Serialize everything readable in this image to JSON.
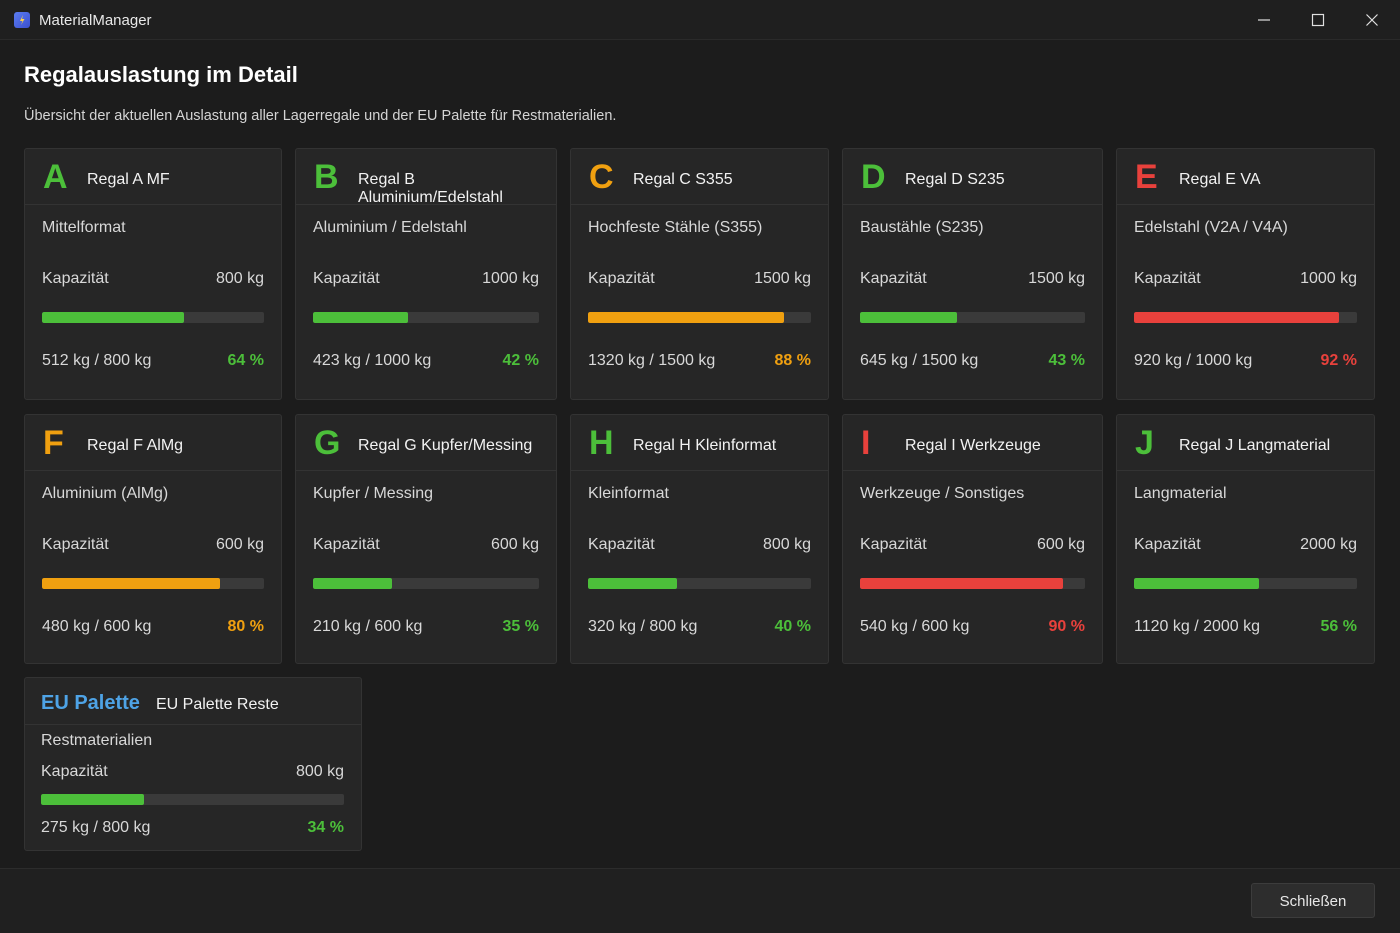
{
  "window": {
    "title": "MaterialManager"
  },
  "header": {
    "title": "Regalauslastung im Detail",
    "subtitle": "Übersicht der aktuellen Auslastung aller Lagerregale und der EU Palette für Restmaterialien."
  },
  "labels": {
    "capacity": "Kapazität"
  },
  "colors": {
    "green": "#4cbf3a",
    "orange": "#f0a010",
    "red": "#e8413c",
    "blue": "#4ea3e6"
  },
  "shelves": [
    {
      "letter": "A",
      "title": "Regal A MF",
      "desc": "Mittelformat",
      "capacity": "800 kg",
      "usage": "512 kg / 800 kg",
      "pct": "64 %",
      "fill": 0.64,
      "color": "green"
    },
    {
      "letter": "B",
      "title": "Regal B Aluminium/Edelstahl",
      "desc": "Aluminium / Edelstahl",
      "capacity": "1000 kg",
      "usage": "423 kg / 1000 kg",
      "pct": "42 %",
      "fill": 0.42,
      "color": "green"
    },
    {
      "letter": "C",
      "title": "Regal C S355",
      "desc": "Hochfeste Stähle (S355)",
      "capacity": "1500 kg",
      "usage": "1320 kg / 1500 kg",
      "pct": "88 %",
      "fill": 0.88,
      "color": "orange"
    },
    {
      "letter": "D",
      "title": "Regal D S235",
      "desc": "Baustähle (S235)",
      "capacity": "1500 kg",
      "usage": "645 kg / 1500 kg",
      "pct": "43 %",
      "fill": 0.43,
      "color": "green"
    },
    {
      "letter": "E",
      "title": "Regal E VA",
      "desc": "Edelstahl (V2A / V4A)",
      "capacity": "1000 kg",
      "usage": "920 kg / 1000 kg",
      "pct": "92 %",
      "fill": 0.92,
      "color": "red"
    },
    {
      "letter": "F",
      "title": "Regal F AlMg",
      "desc": "Aluminium (AlMg)",
      "capacity": "600 kg",
      "usage": "480 kg / 600 kg",
      "pct": "80 %",
      "fill": 0.8,
      "color": "orange"
    },
    {
      "letter": "G",
      "title": "Regal G Kupfer/Messing",
      "desc": "Kupfer / Messing",
      "capacity": "600 kg",
      "usage": "210 kg / 600 kg",
      "pct": "35 %",
      "fill": 0.35,
      "color": "green"
    },
    {
      "letter": "H",
      "title": "Regal H Kleinformat",
      "desc": "Kleinformat",
      "capacity": "800 kg",
      "usage": "320 kg / 800 kg",
      "pct": "40 %",
      "fill": 0.4,
      "color": "green"
    },
    {
      "letter": "I",
      "title": "Regal I Werkzeuge",
      "desc": "Werkzeuge / Sonstiges",
      "capacity": "600 kg",
      "usage": "540 kg / 600 kg",
      "pct": "90 %",
      "fill": 0.9,
      "color": "red"
    },
    {
      "letter": "J",
      "title": "Regal J Langmaterial",
      "desc": "Langmaterial",
      "capacity": "2000 kg",
      "usage": "1120 kg / 2000 kg",
      "pct": "56 %",
      "fill": 0.56,
      "color": "green"
    }
  ],
  "eu_palette": {
    "name": "EU Palette",
    "title": "EU Palette Reste",
    "desc": "Restmaterialien",
    "capacity": "800 kg",
    "usage": "275 kg / 800 kg",
    "pct": "34 %",
    "fill": 0.34,
    "color": "green"
  },
  "footer": {
    "close_label": "Schließen"
  }
}
